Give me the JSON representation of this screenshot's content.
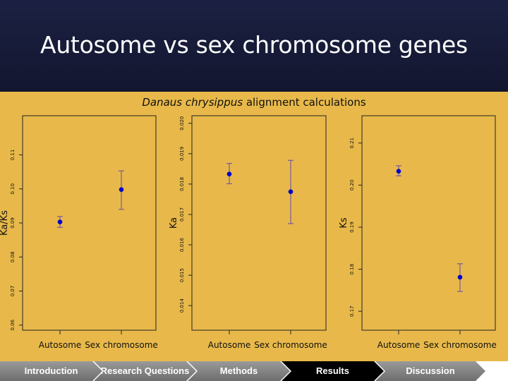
{
  "slide": {
    "title": "Autosome vs sex chromosome genes",
    "chart_heading_species": "Danaus chrysippus",
    "chart_heading_rest": " alignment calculations"
  },
  "colors": {
    "background_header": "#151a38",
    "chart_background": "#e8b94a",
    "point": "#0000cc",
    "errorbar": "#7a5a9a",
    "nav_active": "#000000",
    "nav_inactive": "#808080"
  },
  "navigation": {
    "items": [
      {
        "label": "Introduction",
        "active": false
      },
      {
        "label": "Research Questions",
        "active": false
      },
      {
        "label": "Methods",
        "active": false
      },
      {
        "label": "Results",
        "active": true
      },
      {
        "label": "Discussion",
        "active": false
      }
    ]
  },
  "chart_data": [
    {
      "type": "scatter",
      "ylabel": "Ka/Ks",
      "categories": [
        "Autosome",
        "Sex chromosome"
      ],
      "values": [
        0.0903,
        0.0998
      ],
      "error_low": [
        0.0887,
        0.094
      ],
      "error_high": [
        0.0919,
        0.1053
      ],
      "ylim": [
        0.0585,
        0.1215
      ],
      "yticks": [
        0.06,
        0.07,
        0.08,
        0.09,
        0.1,
        0.11
      ],
      "ytick_labels": [
        "0.06",
        "0.07",
        "0.08",
        "0.09",
        "0.10",
        "0.11"
      ]
    },
    {
      "type": "scatter",
      "ylabel": "Ka",
      "categories": [
        "Autosome",
        "Sex chromosome"
      ],
      "values": [
        0.01833,
        0.01775
      ],
      "error_low": [
        0.01801,
        0.0167
      ],
      "error_high": [
        0.01868,
        0.01878
      ],
      "ylim": [
        0.01319,
        0.02025
      ],
      "yticks": [
        0.014,
        0.015,
        0.016,
        0.017,
        0.018,
        0.019,
        0.02
      ],
      "ytick_labels": [
        "0.014",
        "0.015",
        "0.016",
        "0.017",
        "0.018",
        "0.019",
        "0.020"
      ]
    },
    {
      "type": "scatter",
      "ylabel": "Ks",
      "categories": [
        "Autosome",
        "Sex chromosome"
      ],
      "values": [
        0.2033,
        0.1781
      ],
      "error_low": [
        0.2022,
        0.1747
      ],
      "error_high": [
        0.2046,
        0.1813
      ],
      "ylim": [
        0.1655,
        0.2165
      ],
      "yticks": [
        0.17,
        0.18,
        0.19,
        0.2,
        0.21
      ],
      "ytick_labels": [
        "0.17",
        "0.18",
        "0.19",
        "0.20",
        "0.21"
      ]
    }
  ]
}
